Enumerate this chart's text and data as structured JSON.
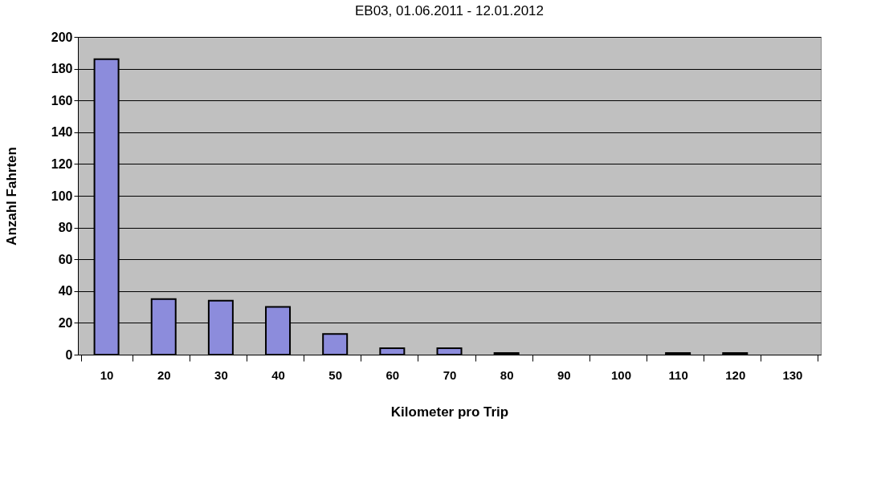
{
  "chart_data": {
    "type": "bar",
    "title": "EB03, 01.06.2011 - 12.01.2012",
    "xlabel": "Kilometer pro Trip",
    "ylabel": "Anzahl Fahrten",
    "categories": [
      "10",
      "20",
      "30",
      "40",
      "50",
      "60",
      "70",
      "80",
      "90",
      "100",
      "110",
      "120",
      "130"
    ],
    "values": [
      186,
      35,
      34,
      30,
      13,
      4,
      4,
      1,
      0,
      0,
      1,
      1,
      0
    ],
    "color": "#8c8cdc",
    "ylim": [
      0,
      200
    ],
    "yticks": [
      0,
      20,
      40,
      60,
      80,
      100,
      120,
      140,
      160,
      180,
      200
    ],
    "grid": "y"
  }
}
